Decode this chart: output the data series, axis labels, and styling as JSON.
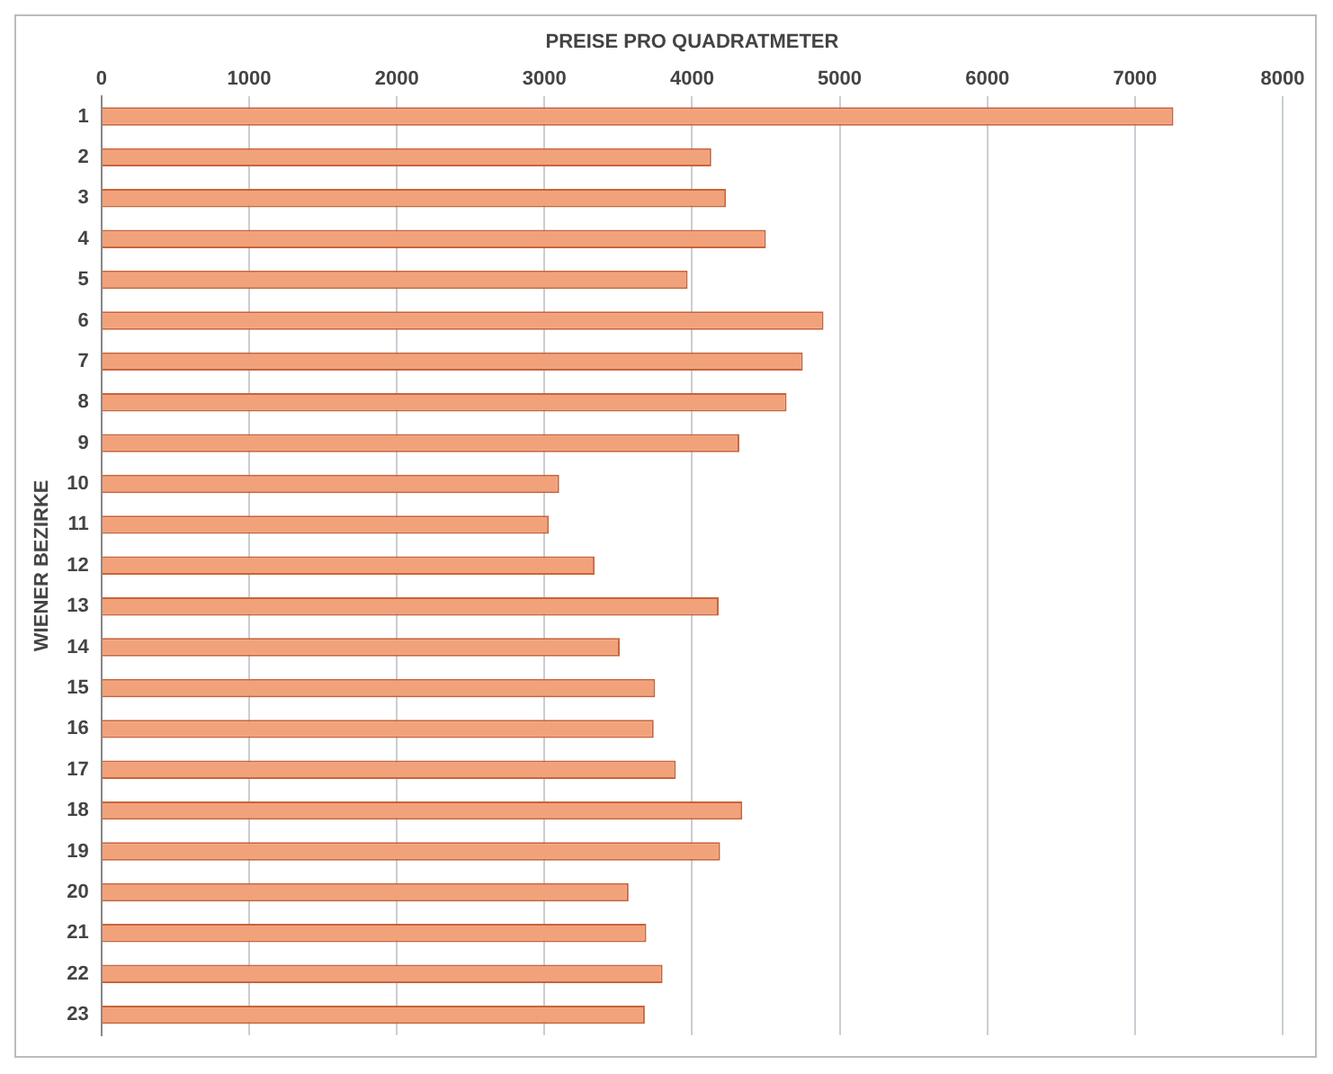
{
  "chart_data": {
    "type": "bar",
    "orientation": "horizontal",
    "xlabel": "PREISE PRO QUADRATMETER",
    "ylabel": "WIENER BEZIRKE",
    "categories": [
      "1",
      "2",
      "3",
      "4",
      "5",
      "6",
      "7",
      "8",
      "9",
      "10",
      "11",
      "12",
      "13",
      "14",
      "15",
      "16",
      "17",
      "18",
      "19",
      "20",
      "21",
      "22",
      "23"
    ],
    "values": [
      7260,
      4130,
      4230,
      4500,
      3970,
      4890,
      4750,
      4640,
      4320,
      3100,
      3030,
      3340,
      4180,
      3510,
      3750,
      3740,
      3890,
      4340,
      4190,
      3570,
      3690,
      3800,
      3680
    ],
    "color": "#f2a27a",
    "xlim": [
      0,
      8000
    ],
    "xticks": [
      0,
      1000,
      2000,
      3000,
      4000,
      5000,
      6000,
      7000,
      8000
    ],
    "grid": "x"
  }
}
